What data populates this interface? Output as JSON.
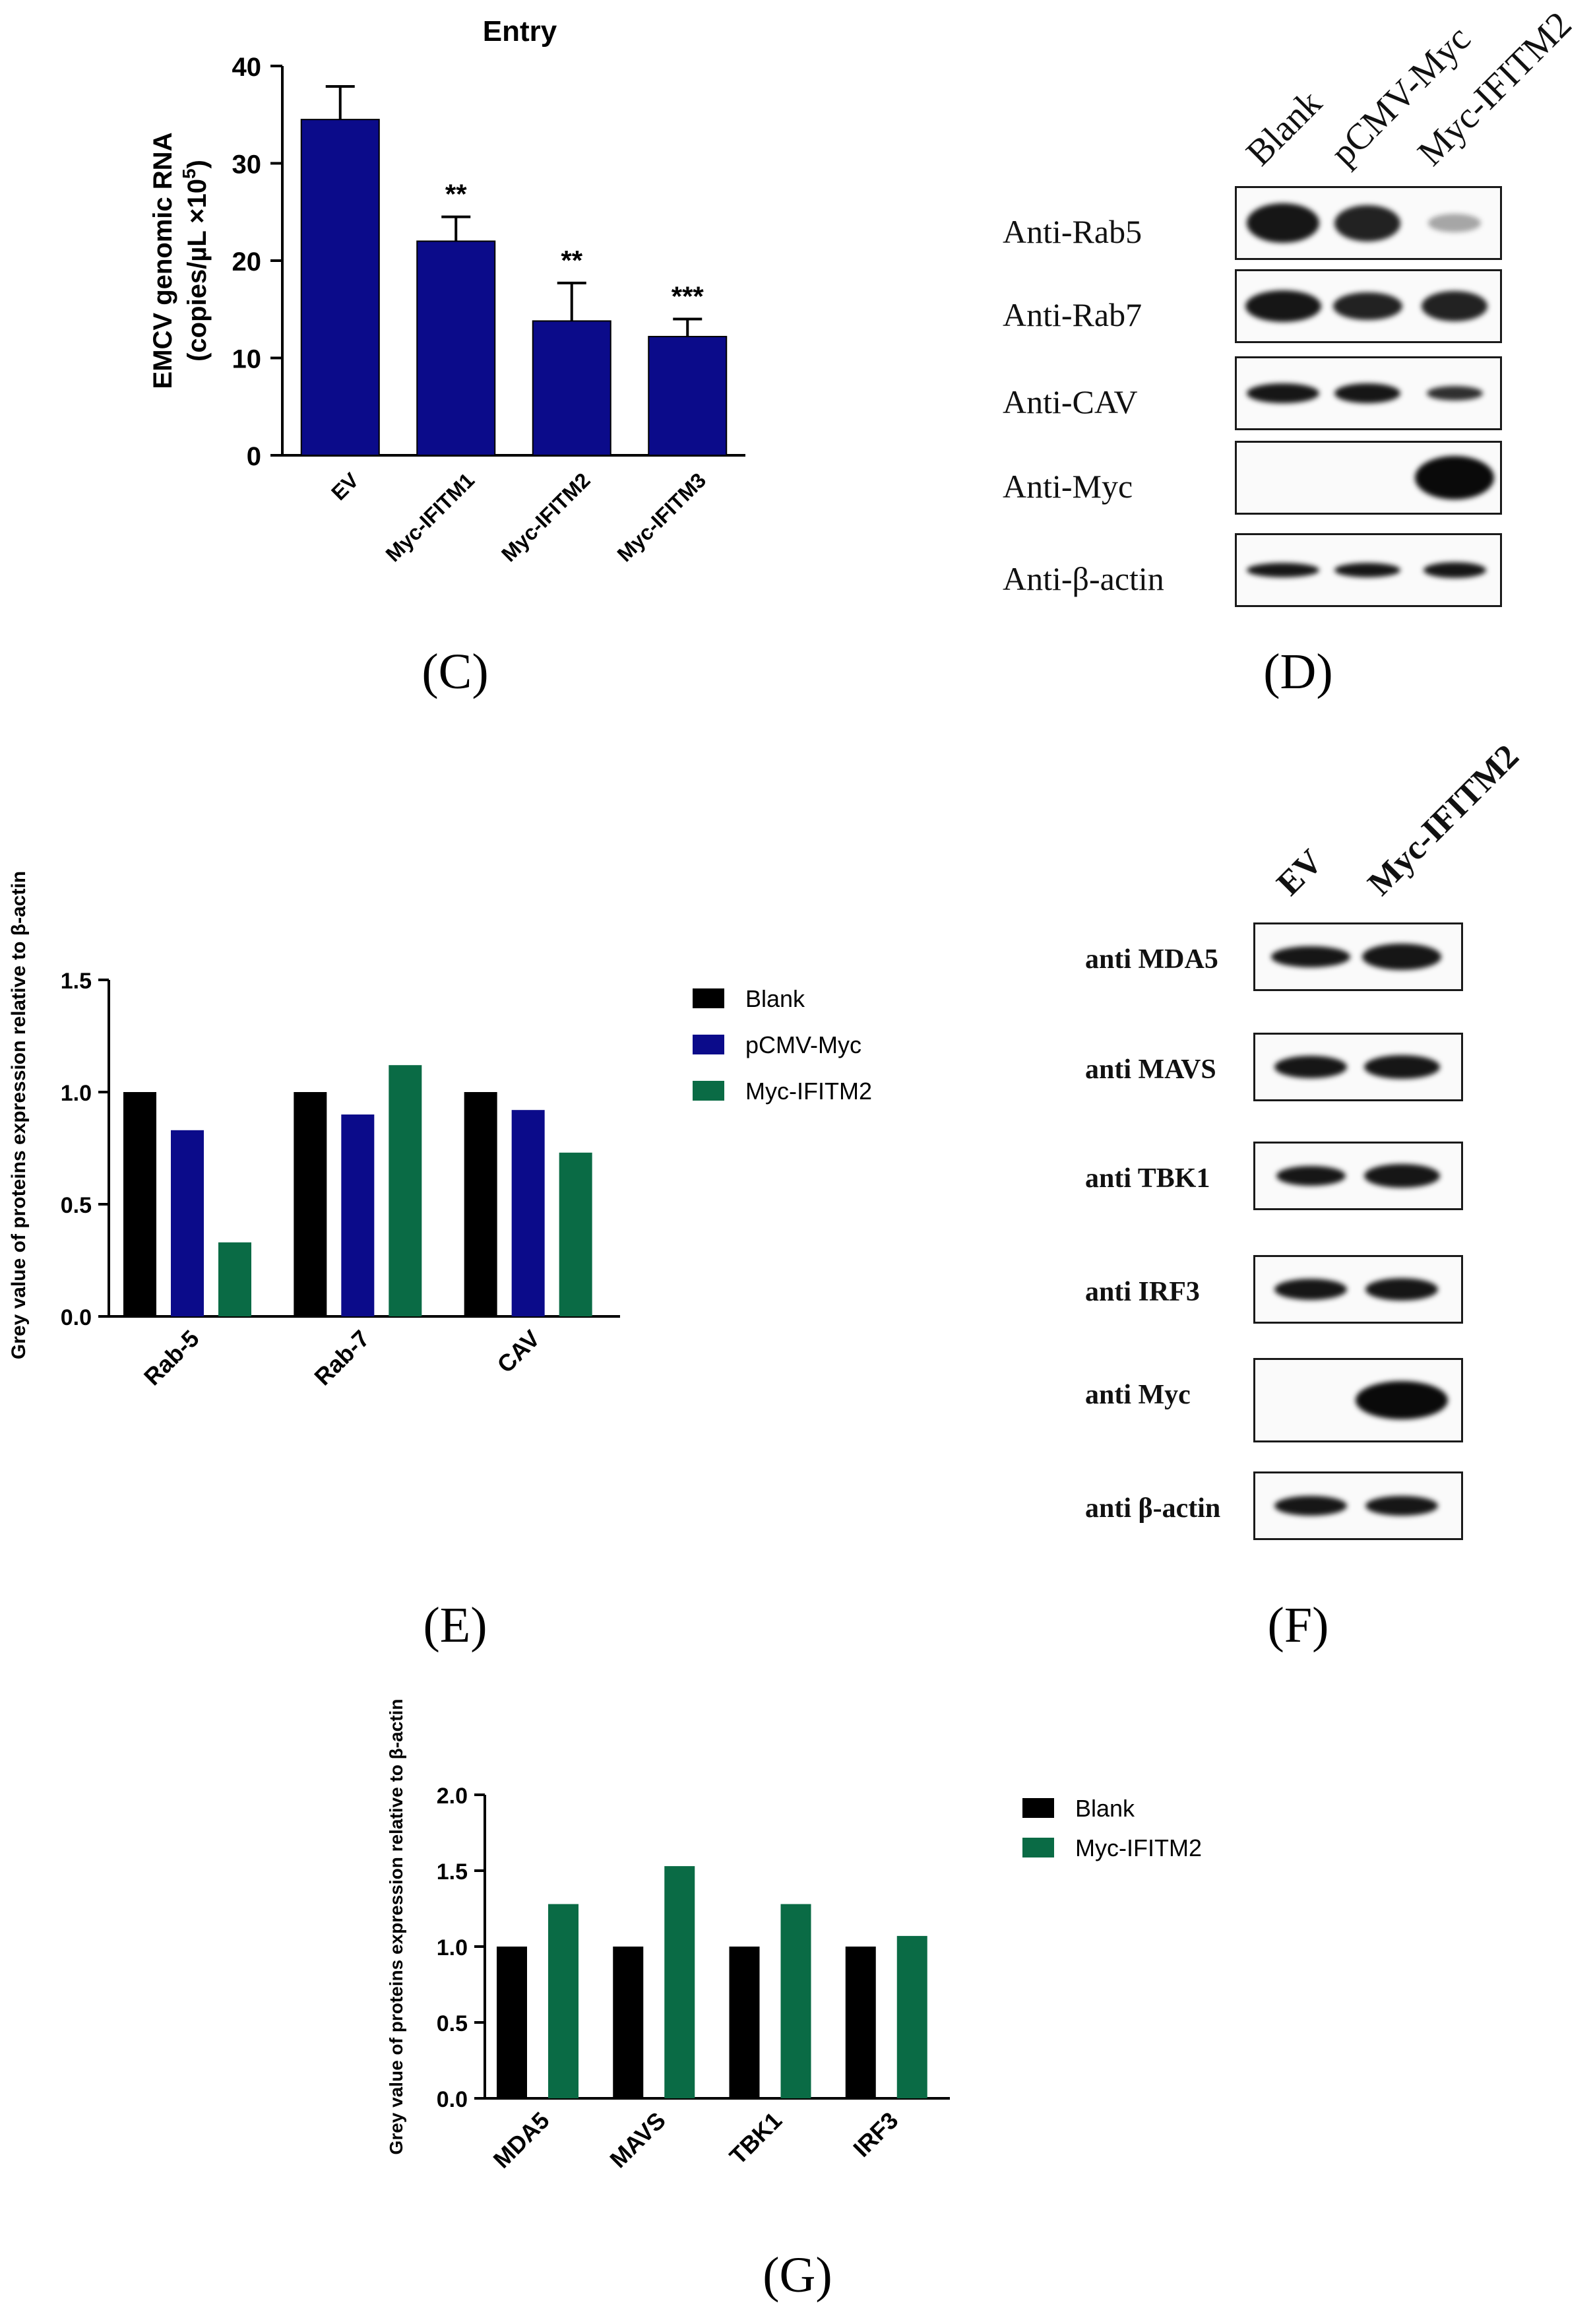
{
  "panels": {
    "C": "(C)",
    "D": "(D)",
    "E": "(E)",
    "F": "(F)",
    "G": "(G)"
  },
  "colors": {
    "navy": "#0b0b8a",
    "black": "#000000",
    "green": "#0a6b45"
  },
  "chart_data": [
    {
      "id": "C",
      "type": "bar",
      "title": "Entry",
      "ylabel_line1": "EMCV genomic RNA",
      "ylabel_line2": "(copies/µL ×10",
      "ylabel_sup": "5",
      "ylabel_close": ")",
      "categories": [
        "EV",
        "Myc-IFITM1",
        "Myc-IFITM2",
        "Myc-IFITM3"
      ],
      "values": [
        34.5,
        22,
        13.8,
        12.2
      ],
      "errors": [
        3.4,
        2.5,
        3.9,
        1.8
      ],
      "significance": [
        "",
        "**",
        "**",
        "***"
      ],
      "ylim": [
        0,
        40
      ],
      "yticks": [
        "0",
        "10",
        "20",
        "30",
        "40"
      ]
    },
    {
      "id": "E",
      "type": "bar",
      "ylabel": "Grey value of proteins expression relative to β-actin",
      "categories": [
        "Rab-5",
        "Rab-7",
        "CAV"
      ],
      "series": [
        {
          "name": "Blank",
          "values": [
            1.0,
            1.0,
            1.0
          ]
        },
        {
          "name": "pCMV-Myc",
          "values": [
            0.83,
            0.9,
            0.92
          ]
        },
        {
          "name": "Myc-IFITM2",
          "values": [
            0.33,
            1.12,
            0.73
          ]
        }
      ],
      "ylim": [
        0,
        1.5
      ],
      "yticks": [
        "0.0",
        "0.5",
        "1.0",
        "1.5"
      ],
      "legend": "right"
    },
    {
      "id": "G",
      "type": "bar",
      "ylabel": "Grey value of proteins expression relative to β-actin",
      "categories": [
        "MDA5",
        "MAVS",
        "TBK1",
        "IRF3"
      ],
      "series": [
        {
          "name": "Blank",
          "values": [
            1.0,
            1.0,
            1.0,
            1.0
          ]
        },
        {
          "name": "Myc-IFITM2",
          "values": [
            1.28,
            1.53,
            1.28,
            1.07
          ]
        }
      ],
      "ylim": [
        0,
        2.0
      ],
      "yticks": [
        "0.0",
        "0.5",
        "1.0",
        "1.5",
        "2.0"
      ],
      "legend": "right"
    }
  ],
  "blot_D": {
    "lanes": [
      "Blank",
      "pCMV-Myc",
      "Myc-IFITM2"
    ],
    "rows": [
      "Anti-Rab5",
      "Anti-Rab7",
      "Anti-CAV",
      "Anti-Myc",
      "Anti-β-actin"
    ]
  },
  "blot_F": {
    "lanes": [
      "EV",
      "Myc-IFITM2"
    ],
    "rows": [
      "anti MDA5",
      "anti MAVS",
      "anti TBK1",
      "anti IRF3",
      "anti Myc",
      "anti β-actin"
    ]
  }
}
